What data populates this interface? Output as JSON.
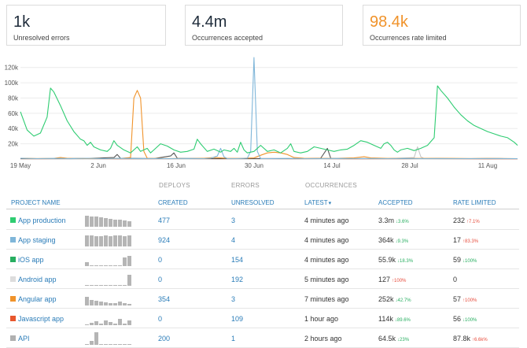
{
  "stats": [
    {
      "value": "1k",
      "label": "Unresolved errors",
      "color": "#1e2b3a"
    },
    {
      "value": "4.4m",
      "label": "Occurrences accepted",
      "color": "#1e2b3a"
    },
    {
      "value": "98.4k",
      "label": "Occurrences rate limited",
      "color": "#f0932b"
    }
  ],
  "chart_data": {
    "type": "line",
    "ylim": [
      0,
      130000
    ],
    "y_ticks": [
      "20k",
      "40k",
      "60k",
      "80k",
      "100k",
      "120k"
    ],
    "x_ticks": [
      "19 May",
      "2 Jun",
      "16 Jun",
      "30 Jun",
      "14 Jul",
      "28 Jul",
      "11 Aug"
    ],
    "grid": true,
    "series": [
      {
        "color": "#2ecc71",
        "points": [
          [
            0,
            62000
          ],
          [
            2,
            38000
          ],
          [
            4,
            30000
          ],
          [
            6,
            34000
          ],
          [
            8,
            55000
          ],
          [
            9,
            93000
          ],
          [
            10,
            88000
          ],
          [
            12,
            70000
          ],
          [
            14,
            50000
          ],
          [
            16,
            36000
          ],
          [
            18,
            26000
          ],
          [
            19,
            24000
          ],
          [
            20,
            18000
          ],
          [
            21,
            22000
          ],
          [
            22,
            16000
          ],
          [
            24,
            12000
          ],
          [
            26,
            10000
          ],
          [
            27,
            14000
          ],
          [
            28,
            24000
          ],
          [
            29,
            18000
          ],
          [
            31,
            12000
          ],
          [
            33,
            8000
          ],
          [
            35,
            16000
          ],
          [
            36,
            10000
          ],
          [
            38,
            14000
          ],
          [
            39,
            8000
          ],
          [
            40,
            12000
          ],
          [
            42,
            20000
          ],
          [
            44,
            17000
          ],
          [
            46,
            12000
          ],
          [
            48,
            9000
          ],
          [
            50,
            10000
          ],
          [
            52,
            13000
          ],
          [
            53,
            26000
          ],
          [
            54,
            20000
          ],
          [
            56,
            10000
          ],
          [
            58,
            13000
          ],
          [
            60,
            9000
          ],
          [
            61,
            12000
          ],
          [
            63,
            10000
          ],
          [
            64,
            14000
          ],
          [
            65,
            9000
          ],
          [
            66,
            22000
          ],
          [
            67,
            12000
          ],
          [
            68,
            8000
          ],
          [
            70,
            10000
          ],
          [
            72,
            18000
          ],
          [
            74,
            10000
          ],
          [
            76,
            12000
          ],
          [
            78,
            8000
          ],
          [
            80,
            14000
          ],
          [
            81,
            20000
          ],
          [
            82,
            10000
          ],
          [
            84,
            8000
          ],
          [
            86,
            10000
          ],
          [
            88,
            16000
          ],
          [
            90,
            14000
          ],
          [
            92,
            12000
          ],
          [
            94,
            10000
          ],
          [
            96,
            12000
          ],
          [
            98,
            13000
          ],
          [
            100,
            18000
          ],
          [
            102,
            24000
          ],
          [
            104,
            22000
          ],
          [
            106,
            18000
          ],
          [
            108,
            14000
          ],
          [
            109,
            20000
          ],
          [
            110,
            22000
          ],
          [
            111,
            18000
          ],
          [
            112,
            12000
          ],
          [
            113,
            9000
          ],
          [
            114,
            12000
          ],
          [
            116,
            14000
          ],
          [
            118,
            11000
          ],
          [
            120,
            14000
          ],
          [
            122,
            18000
          ],
          [
            124,
            28000
          ],
          [
            125,
            96000
          ],
          [
            126,
            90000
          ],
          [
            128,
            80000
          ],
          [
            130,
            68000
          ],
          [
            132,
            58000
          ],
          [
            134,
            50000
          ],
          [
            136,
            44000
          ],
          [
            138,
            40000
          ],
          [
            140,
            36000
          ],
          [
            142,
            33000
          ],
          [
            144,
            30000
          ],
          [
            146,
            28000
          ],
          [
            148,
            22000
          ],
          [
            149,
            18000
          ]
        ]
      },
      {
        "color": "#7fb6d9",
        "points": [
          [
            0,
            1000
          ],
          [
            5,
            500
          ],
          [
            10,
            800
          ],
          [
            15,
            400
          ],
          [
            20,
            1000
          ],
          [
            25,
            500
          ],
          [
            30,
            900
          ],
          [
            35,
            400
          ],
          [
            40,
            600
          ],
          [
            45,
            500
          ],
          [
            50,
            800
          ],
          [
            55,
            500
          ],
          [
            57,
            1000
          ],
          [
            59,
            4000
          ],
          [
            60,
            14000
          ],
          [
            61,
            3000
          ],
          [
            62,
            500
          ],
          [
            65,
            600
          ],
          [
            68,
            1000
          ],
          [
            69,
            10000
          ],
          [
            70,
            133000
          ],
          [
            71,
            10000
          ],
          [
            72,
            600
          ],
          [
            75,
            500
          ],
          [
            80,
            800
          ],
          [
            85,
            500
          ],
          [
            90,
            500
          ],
          [
            95,
            800
          ],
          [
            100,
            500
          ],
          [
            105,
            600
          ],
          [
            110,
            500
          ],
          [
            115,
            800
          ],
          [
            120,
            500
          ],
          [
            125,
            600
          ],
          [
            130,
            500
          ],
          [
            135,
            500
          ],
          [
            140,
            600
          ],
          [
            145,
            500
          ],
          [
            149,
            500
          ]
        ]
      },
      {
        "color": "#f0932b",
        "points": [
          [
            0,
            1000
          ],
          [
            5,
            600
          ],
          [
            10,
            800
          ],
          [
            12,
            2000
          ],
          [
            14,
            1000
          ],
          [
            16,
            600
          ],
          [
            20,
            800
          ],
          [
            25,
            500
          ],
          [
            30,
            800
          ],
          [
            33,
            2000
          ],
          [
            34,
            80000
          ],
          [
            35,
            90000
          ],
          [
            36,
            80000
          ],
          [
            37,
            10000
          ],
          [
            38,
            1000
          ],
          [
            40,
            800
          ],
          [
            45,
            600
          ],
          [
            50,
            800
          ],
          [
            55,
            1000
          ],
          [
            58,
            2000
          ],
          [
            62,
            1000
          ],
          [
            66,
            800
          ],
          [
            70,
            1500
          ],
          [
            72,
            5000
          ],
          [
            74,
            8000
          ],
          [
            76,
            9000
          ],
          [
            78,
            8000
          ],
          [
            80,
            6000
          ],
          [
            82,
            2000
          ],
          [
            85,
            1000
          ],
          [
            90,
            800
          ],
          [
            95,
            1000
          ],
          [
            100,
            1500
          ],
          [
            103,
            3000
          ],
          [
            105,
            1500
          ],
          [
            110,
            800
          ],
          [
            115,
            1000
          ],
          [
            120,
            800
          ],
          [
            125,
            1000
          ],
          [
            130,
            800
          ],
          [
            135,
            600
          ],
          [
            140,
            800
          ],
          [
            145,
            600
          ],
          [
            149,
            500
          ]
        ]
      },
      {
        "color": "#555555",
        "points": [
          [
            0,
            600
          ],
          [
            10,
            500
          ],
          [
            20,
            800
          ],
          [
            28,
            2000
          ],
          [
            29,
            6000
          ],
          [
            30,
            1000
          ],
          [
            40,
            600
          ],
          [
            45,
            4000
          ],
          [
            46,
            8000
          ],
          [
            47,
            1000
          ],
          [
            55,
            500
          ],
          [
            65,
            500
          ],
          [
            75,
            600
          ],
          [
            85,
            500
          ],
          [
            90,
            1000
          ],
          [
            92,
            14000
          ],
          [
            93,
            1000
          ],
          [
            100,
            600
          ],
          [
            110,
            500
          ],
          [
            120,
            500
          ],
          [
            130,
            500
          ],
          [
            140,
            600
          ],
          [
            149,
            500
          ]
        ]
      },
      {
        "color": "#c7c7c7",
        "points": [
          [
            0,
            200
          ],
          [
            6,
            400
          ],
          [
            10,
            300
          ],
          [
            20,
            500
          ],
          [
            30,
            400
          ],
          [
            40,
            500
          ],
          [
            50,
            400
          ],
          [
            60,
            600
          ],
          [
            70,
            500
          ],
          [
            80,
            400
          ],
          [
            90,
            600
          ],
          [
            100,
            400
          ],
          [
            110,
            500
          ],
          [
            118,
            2000
          ],
          [
            119,
            16000
          ],
          [
            120,
            3000
          ],
          [
            121,
            500
          ],
          [
            130,
            400
          ],
          [
            140,
            500
          ],
          [
            149,
            300
          ]
        ]
      },
      {
        "color": "#e8572d",
        "points": [
          [
            0,
            300
          ],
          [
            10,
            400
          ],
          [
            20,
            500
          ],
          [
            30,
            300
          ],
          [
            40,
            400
          ],
          [
            50,
            500
          ],
          [
            60,
            400
          ],
          [
            70,
            600
          ],
          [
            80,
            400
          ],
          [
            90,
            500
          ],
          [
            100,
            300
          ],
          [
            110,
            400
          ],
          [
            120,
            500
          ],
          [
            130,
            400
          ],
          [
            140,
            300
          ],
          [
            149,
            200
          ]
        ]
      }
    ]
  },
  "table": {
    "group_headers": {
      "deploys": "DEPLOYS",
      "errors": "ERRORS",
      "occurrences": "OCCURRENCES"
    },
    "columns": {
      "project": "PROJECT NAME",
      "created": "CREATED",
      "unresolved": "UNRESOLVED",
      "latest": "LATEST",
      "latest_arrow": "▾",
      "accepted": "ACCEPTED",
      "rate_limited": "RATE LIMITED"
    },
    "rows": [
      {
        "name": "App production",
        "color": "#2ecc71",
        "created": "477",
        "unresolved": "3",
        "latest": "4 minutes ago",
        "accepted": "3.3m",
        "accepted_delta": "↓3.6%",
        "accepted_dir": "down",
        "rate": "232",
        "rate_delta": "↑7.1%",
        "rate_dir": "up",
        "spark": [
          0.75,
          0.7,
          0.7,
          0.65,
          0.6,
          0.55,
          0.5,
          0.5,
          0.45,
          0.4
        ]
      },
      {
        "name": "App staging",
        "color": "#7fb6d9",
        "created": "924",
        "unresolved": "4",
        "latest": "4 minutes ago",
        "accepted": "364k",
        "accepted_delta": "↓9.3%",
        "accepted_dir": "down",
        "rate": "17",
        "rate_delta": "↑83.3%",
        "rate_dir": "up",
        "spark": [
          0.75,
          0.75,
          0.7,
          0.7,
          0.75,
          0.7,
          0.75,
          0.75,
          0.7,
          0.75
        ]
      },
      {
        "name": "iOS app",
        "color": "#27ae60",
        "created": "0",
        "unresolved": "154",
        "latest": "4 minutes ago",
        "accepted": "55.9k",
        "accepted_delta": "↓18.3%",
        "accepted_dir": "down",
        "rate": "59",
        "rate_delta": "↓100%",
        "rate_dir": "down",
        "spark": [
          0.3,
          0.05,
          0.05,
          0.05,
          0.05,
          0.05,
          0.05,
          0.05,
          0.6,
          0.7
        ]
      },
      {
        "name": "Android app",
        "color": "#dddddd",
        "created": "0",
        "unresolved": "192",
        "latest": "5 minutes ago",
        "accepted": "127",
        "accepted_delta": "↑100%",
        "accepted_dir": "up",
        "rate": "0",
        "rate_delta": "",
        "rate_dir": "",
        "spark": [
          0.05,
          0.05,
          0.05,
          0.05,
          0.05,
          0.05,
          0.05,
          0.05,
          0.05,
          0.75
        ]
      },
      {
        "name": "Angular app",
        "color": "#f0932b",
        "created": "354",
        "unresolved": "3",
        "latest": "7 minutes ago",
        "accepted": "252k",
        "accepted_delta": "↓42.7%",
        "accepted_dir": "down",
        "rate": "57",
        "rate_delta": "↑100%",
        "rate_dir": "up",
        "spark": [
          0.6,
          0.4,
          0.35,
          0.3,
          0.2,
          0.15,
          0.15,
          0.25,
          0.15,
          0.1
        ]
      },
      {
        "name": "Javascript app",
        "color": "#e8572d",
        "created": "0",
        "unresolved": "109",
        "latest": "1 hour ago",
        "accepted": "114k",
        "accepted_delta": "↓89.6%",
        "accepted_dir": "down",
        "rate": "56",
        "rate_delta": "↓100%",
        "rate_dir": "down",
        "spark": [
          0.05,
          0.15,
          0.3,
          0.1,
          0.35,
          0.2,
          0.1,
          0.45,
          0.1,
          0.35
        ]
      },
      {
        "name": "API",
        "color": "#b0b0b0",
        "created": "200",
        "unresolved": "1",
        "latest": "2 hours ago",
        "accepted": "64.5k",
        "accepted_delta": "↓23%",
        "accepted_dir": "down",
        "rate": "87.8k",
        "rate_delta": "↑6.6k%",
        "rate_dir": "up",
        "spark": [
          0.05,
          0.3,
          0.9,
          0.05,
          0.05,
          0.05,
          0.05,
          0.05,
          0.05,
          0.05
        ]
      }
    ]
  }
}
